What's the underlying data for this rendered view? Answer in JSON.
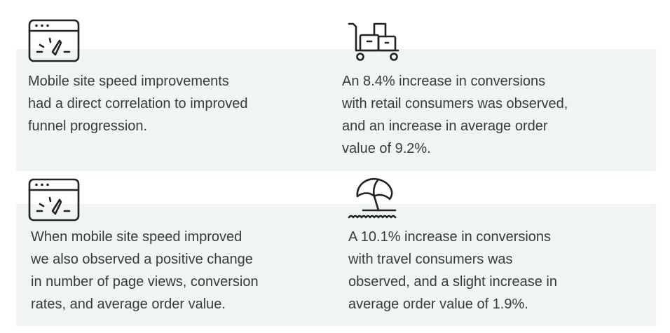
{
  "cards": [
    {
      "icon": "browser-speedometer-icon",
      "text": "Mobile site speed improvements\nhad a direct correlation to improved\nfunnel progression."
    },
    {
      "icon": "luggage-cart-icon",
      "text": "An 8.4% increase in conversions\nwith retail consumers was observed,\nand an increase in average order\nvalue of 9.2%."
    },
    {
      "icon": "browser-speedometer-icon",
      "text": "When mobile site speed improved\nwe also observed a positive change\nin number of page views, conversion\nrates, and average order value."
    },
    {
      "icon": "beach-umbrella-icon",
      "text": "A 10.1% increase in conversions\nwith travel consumers was\nobserved, and a slight increase in\naverage order value of 1.9%."
    }
  ],
  "colors": {
    "band_background": "#f0f4f2",
    "text": "#3a3a3a",
    "icon_stroke": "#222222"
  }
}
